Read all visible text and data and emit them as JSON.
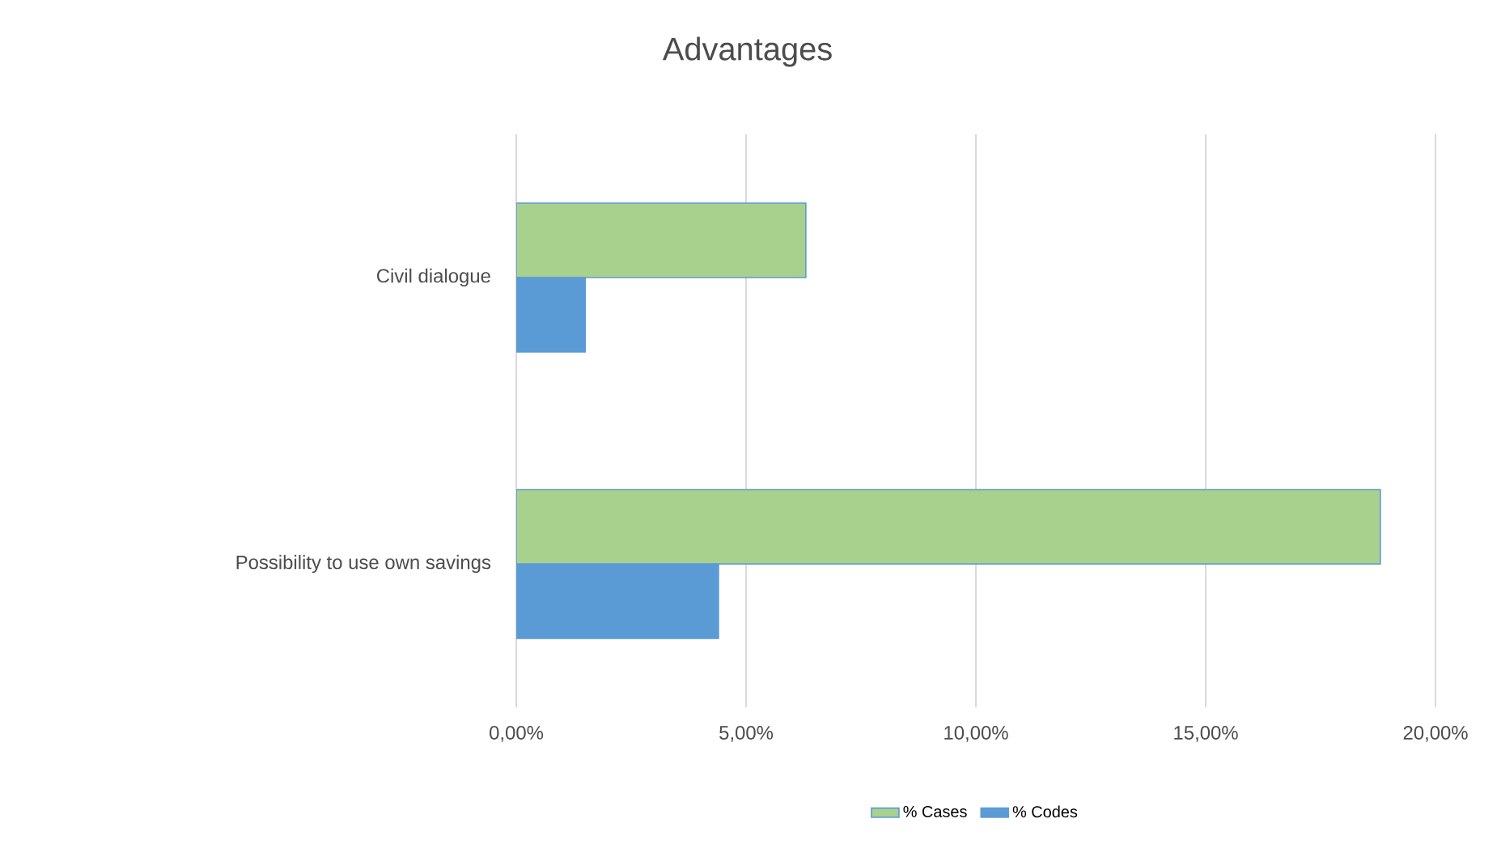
{
  "chart_data": {
    "type": "bar",
    "orientation": "horizontal",
    "title": "Advantages",
    "categories": [
      "Civil dialogue",
      "Possibility to use own savings"
    ],
    "series": [
      {
        "name": "% Cases",
        "color": "#a9d18e",
        "values": [
          6.3,
          18.8
        ]
      },
      {
        "name": "% Codes",
        "color": "#5b9bd5",
        "values": [
          1.5,
          4.4
        ]
      }
    ],
    "xlim": [
      0,
      20
    ],
    "xticks": [
      {
        "value": 0,
        "label": "0,00%"
      },
      {
        "value": 5,
        "label": "5,00%"
      },
      {
        "value": 10,
        "label": "10,00%"
      },
      {
        "value": 15,
        "label": "15,00%"
      },
      {
        "value": 20,
        "label": "20,00%"
      }
    ],
    "grid": "x",
    "legend": "bottom"
  }
}
